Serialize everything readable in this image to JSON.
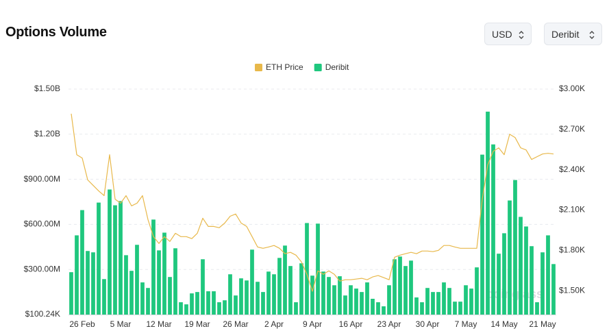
{
  "header": {
    "title": "Options Volume",
    "currency": "USD",
    "exchange": "Deribit"
  },
  "watermark": "coinglass",
  "chart_data": {
    "type": "bar",
    "categories": [
      null,
      null,
      "26 Feb",
      null,
      null,
      null,
      null,
      null,
      null,
      "5 Mar",
      null,
      null,
      null,
      null,
      null,
      null,
      "12 Mar",
      null,
      null,
      null,
      null,
      null,
      null,
      "19 Mar",
      null,
      null,
      null,
      null,
      null,
      null,
      "26 Mar",
      null,
      null,
      null,
      null,
      null,
      null,
      "2 Apr",
      null,
      null,
      null,
      null,
      null,
      null,
      "9 Apr",
      null,
      null,
      null,
      null,
      null,
      null,
      "16 Apr",
      null,
      null,
      null,
      null,
      null,
      null,
      "23 Apr",
      null,
      null,
      null,
      null,
      null,
      null,
      "30 Apr",
      null,
      null,
      null,
      null,
      null,
      null,
      "7 May",
      null,
      null,
      null,
      null,
      null,
      null,
      "14 May",
      null,
      null,
      null,
      null,
      null,
      null,
      "21 May",
      null,
      null
    ],
    "series": [
      {
        "name": "Deribit",
        "type": "bar",
        "color": "#1fc77e",
        "axis": "y",
        "values": [
          282000000,
          527000000,
          695000000,
          423000000,
          414000000,
          745000000,
          236000000,
          832000000,
          727000000,
          755000000,
          395000000,
          291000000,
          464000000,
          214000000,
          177000000,
          632000000,
          427000000,
          545000000,
          250000000,
          441000000,
          82000000,
          68000000,
          141000000,
          150000000,
          368000000,
          155000000,
          155000000,
          82000000,
          95000000,
          268000000,
          127000000,
          241000000,
          227000000,
          432000000,
          218000000,
          150000000,
          286000000,
          268000000,
          377000000,
          459000000,
          323000000,
          82000000,
          341000000,
          609000000,
          259000000,
          605000000,
          286000000,
          250000000,
          195000000,
          255000000,
          127000000,
          195000000,
          173000000,
          150000000,
          214000000,
          105000000,
          82000000,
          55000000,
          195000000,
          368000000,
          386000000,
          323000000,
          359000000,
          114000000,
          82000000,
          177000000,
          150000000,
          150000000,
          214000000,
          177000000,
          86000000,
          86000000,
          195000000,
          173000000,
          314000000,
          1064000000,
          1350000000,
          1132000000,
          405000000,
          541000000,
          759000000,
          895000000,
          650000000,
          586000000,
          455000000,
          82000000,
          414000000,
          527000000,
          336000000
        ]
      },
      {
        "name": "ETH Price",
        "type": "line",
        "color": "#e8b84a",
        "axis": "y2",
        "values": [
          2817,
          2512,
          2487,
          2324,
          2283,
          2242,
          2207,
          2512,
          2181,
          2151,
          2207,
          2131,
          2151,
          2207,
          2029,
          1902,
          1851,
          1902,
          1866,
          1927,
          1902,
          1902,
          1887,
          1927,
          2039,
          1978,
          1978,
          1968,
          2003,
          2054,
          2070,
          2003,
          1978,
          1902,
          1825,
          1815,
          1825,
          1836,
          1815,
          1775,
          1785,
          1764,
          1714,
          1622,
          1495,
          1647,
          1622,
          1647,
          1622,
          1571,
          1581,
          1581,
          1586,
          1592,
          1581,
          1602,
          1612,
          1597,
          1581,
          1749,
          1764,
          1775,
          1785,
          1775,
          1795,
          1795,
          1790,
          1800,
          1836,
          1836,
          1825,
          1815,
          1815,
          1815,
          1815,
          2181,
          2436,
          2537,
          2563,
          2512,
          2664,
          2639,
          2563,
          2547,
          2476,
          2497,
          2517,
          2522,
          2517
        ]
      }
    ],
    "legend_order": [
      "ETH Price",
      "Deribit"
    ],
    "ylim": [
      100240,
      1500000000
    ],
    "yticks": [
      {
        "value": 100240,
        "label": "$100.24K"
      },
      {
        "value": 300000000,
        "label": "$300.00M"
      },
      {
        "value": 600000000,
        "label": "$600.00M"
      },
      {
        "value": 900000000,
        "label": "$900.00M"
      },
      {
        "value": 1200000000,
        "label": "$1.20B"
      },
      {
        "value": 1500000000,
        "label": "$1.50B"
      }
    ],
    "y2lim": [
      1322,
      3000
    ],
    "y2ticks": [
      {
        "value": 1500,
        "label": "$1.50K"
      },
      {
        "value": 1800,
        "label": "$1.80K"
      },
      {
        "value": 2100,
        "label": "$2.10K"
      },
      {
        "value": 2400,
        "label": "$2.40K"
      },
      {
        "value": 2700,
        "label": "$2.70K"
      },
      {
        "value": 3000,
        "label": "$3.00K"
      }
    ],
    "grid": true,
    "legend": "top"
  }
}
